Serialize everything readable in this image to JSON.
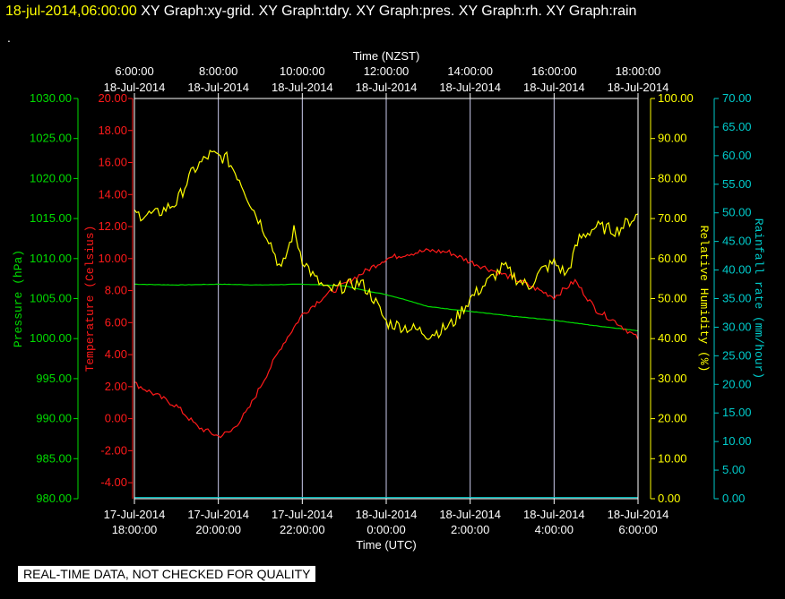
{
  "header": {
    "date_label": "18-jul-2014,06:00:00",
    "graph_titles": [
      "XY Graph:xy-grid.",
      "XY Graph:tdry.",
      "XY Graph:pres.",
      "XY Graph:rh.",
      "XY Graph:rain"
    ],
    "dot": "."
  },
  "disclaimer": "REAL-TIME DATA, NOT CHECKED FOR QUALITY",
  "colors": {
    "pressure": "#00dd00",
    "temperature": "#ff1a1a",
    "humidity": "#ffff00",
    "rain": "#00cccc",
    "grid": "#ccccee",
    "frame": "#ffffff"
  },
  "chart_data": {
    "type": "line",
    "x_top": {
      "label": "Time (NZST)",
      "ticks": [
        [
          "6:00:00",
          "18-Jul-2014"
        ],
        [
          "8:00:00",
          "18-Jul-2014"
        ],
        [
          "10:00:00",
          "18-Jul-2014"
        ],
        [
          "12:00:00",
          "18-Jul-2014"
        ],
        [
          "14:00:00",
          "18-Jul-2014"
        ],
        [
          "16:00:00",
          "18-Jul-2014"
        ],
        [
          "18:00:00",
          "18-Jul-2014"
        ]
      ]
    },
    "x_bottom": {
      "label": "Time (UTC)",
      "ticks": [
        [
          "17-Jul-2014",
          "18:00:00"
        ],
        [
          "17-Jul-2014",
          "20:00:00"
        ],
        [
          "17-Jul-2014",
          "22:00:00"
        ],
        [
          "18-Jul-2014",
          "0:00:00"
        ],
        [
          "18-Jul-2014",
          "2:00:00"
        ],
        [
          "18-Jul-2014",
          "4:00:00"
        ],
        [
          "18-Jul-2014",
          "6:00:00"
        ]
      ]
    },
    "xlim_hours_utc": [
      -6,
      6
    ],
    "grid": true,
    "axes": {
      "pressure": {
        "label": "Pressure (hPa)",
        "ylim": [
          980,
          1030
        ],
        "ticks": [
          "980.00",
          "985.00",
          "990.00",
          "995.00",
          "1000.00",
          "1005.00",
          "1010.00",
          "1015.00",
          "1020.00",
          "1025.00",
          "1030.00"
        ]
      },
      "temperature": {
        "label": "Temperature (Celsius)",
        "ylim": [
          -5,
          20
        ],
        "ticks": [
          "-4.00",
          "-2.00",
          "0.00",
          "2.00",
          "4.00",
          "6.00",
          "8.00",
          "10.00",
          "12.00",
          "14.00",
          "16.00",
          "18.00",
          "20.00"
        ]
      },
      "humidity": {
        "label": "Relative Humidity (%)",
        "ylim": [
          0,
          100
        ],
        "ticks": [
          "0.00",
          "10.00",
          "20.00",
          "30.00",
          "40.00",
          "50.00",
          "60.00",
          "70.00",
          "80.00",
          "90.00",
          "100.00"
        ]
      },
      "rain": {
        "label": "Rainfall rate (mm/hour)",
        "ylim": [
          0,
          70
        ],
        "ticks": [
          "0.00",
          "5.00",
          "10.00",
          "15.00",
          "20.00",
          "25.00",
          "30.00",
          "35.00",
          "40.00",
          "45.00",
          "50.00",
          "55.00",
          "60.00",
          "65.00",
          "70.00"
        ]
      }
    },
    "series": [
      {
        "key": "pressure",
        "x_hours_utc": [
          -6,
          -5,
          -4,
          -3,
          -2,
          -1,
          -0.5,
          0,
          0.5,
          1,
          2,
          3,
          4,
          5,
          6
        ],
        "values": [
          1006.8,
          1006.7,
          1006.8,
          1006.7,
          1006.8,
          1006.6,
          1006.0,
          1005.5,
          1004.8,
          1004.0,
          1003.4,
          1002.8,
          1002.3,
          1001.6,
          1001.0
        ]
      },
      {
        "key": "temperature",
        "x_hours_utc": [
          -6,
          -5.5,
          -5,
          -4.5,
          -4,
          -3.7,
          -3.3,
          -3,
          -2.5,
          -2,
          -1.5,
          -1,
          -0.5,
          0,
          0.5,
          1,
          1.5,
          2,
          2.5,
          3,
          3.5,
          4,
          4.5,
          5,
          5.5,
          6
        ],
        "values": [
          2.2,
          1.5,
          0.8,
          -0.5,
          -1.1,
          -0.8,
          0.5,
          2.0,
          4.5,
          6.5,
          7.6,
          8.4,
          9.2,
          10.0,
          10.3,
          10.5,
          10.4,
          9.8,
          9.3,
          8.8,
          8.2,
          7.6,
          8.6,
          6.8,
          6.0,
          5.0
        ]
      },
      {
        "key": "humidity",
        "x_hours_utc": [
          -6,
          -5.5,
          -5,
          -4.6,
          -4.2,
          -3.8,
          -3.5,
          -3.2,
          -2.8,
          -2.5,
          -2.2,
          -2.0,
          -1.7,
          -1.4,
          -1,
          -0.6,
          -0.3,
          0,
          0.4,
          0.8,
          1,
          1.3,
          1.6,
          2,
          2.4,
          2.8,
          3.1,
          3.4,
          3.7,
          4,
          4.3,
          4.6,
          5,
          5.5,
          6
        ],
        "values": [
          71,
          71,
          74,
          82,
          86,
          85,
          80,
          73,
          65,
          57,
          67,
          60,
          55,
          52,
          53,
          54,
          50,
          44,
          43,
          42,
          41,
          42,
          44,
          50,
          54,
          58,
          55,
          53,
          57,
          59,
          56,
          65,
          68,
          67,
          71
        ]
      },
      {
        "key": "rain",
        "x_hours_utc": [
          -6,
          6
        ],
        "values": [
          0.2,
          0.2
        ]
      }
    ]
  }
}
